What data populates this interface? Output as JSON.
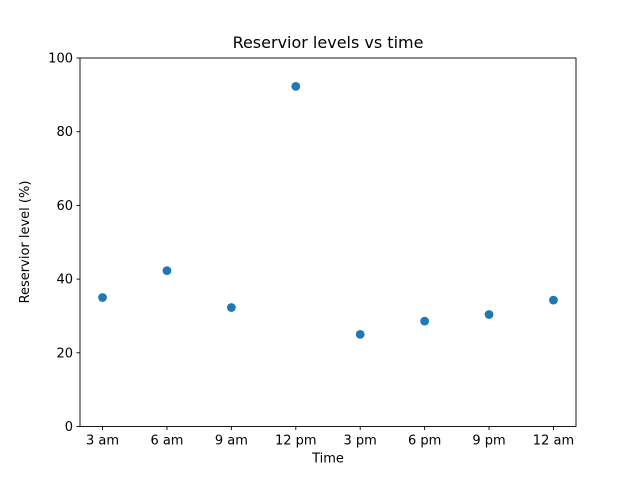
{
  "figure": {
    "background": "#ffffff",
    "text_color": "#000000",
    "spine_color": "#000000"
  },
  "chart_data": {
    "type": "scatter",
    "title": "Reservior levels vs time",
    "xlabel": "Time",
    "ylabel": "Reservior level (%)",
    "categories": [
      "3 am",
      "6 am",
      "9 am",
      "12 pm",
      "3 pm",
      "6 pm",
      "9 pm",
      "12 am"
    ],
    "values": [
      35,
      42.3,
      32.3,
      92.3,
      25,
      28.6,
      30.4,
      34.3
    ],
    "ylim": [
      0,
      100
    ],
    "yticks": [
      0,
      20,
      40,
      60,
      80,
      100
    ],
    "marker": {
      "shape": "circle",
      "color": "#1f77b4",
      "radius_px": 4.4
    },
    "grid": false,
    "legend_position": "none"
  }
}
